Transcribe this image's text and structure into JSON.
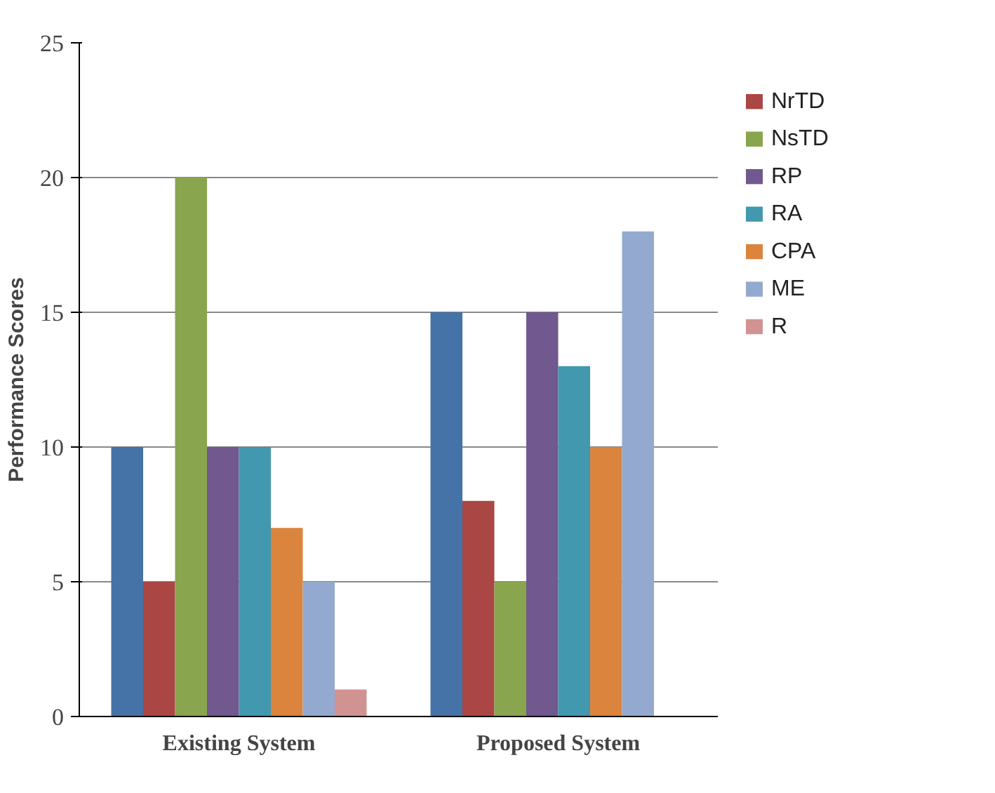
{
  "chart_data": {
    "type": "bar",
    "ylabel": "Performance Scores",
    "categories": [
      "Existing System",
      "Proposed System"
    ],
    "series": [
      {
        "color": "#4572a7",
        "values": [
          10,
          15
        ]
      },
      {
        "name": "NrTD",
        "color": "#aa4643",
        "values": [
          5,
          8
        ]
      },
      {
        "name": "NsTD",
        "color": "#89a54e",
        "values": [
          20,
          5
        ]
      },
      {
        "name": "RP",
        "color": "#71588f",
        "values": [
          10,
          15
        ]
      },
      {
        "name": "RA",
        "color": "#4198af",
        "values": [
          10,
          13
        ]
      },
      {
        "name": "CPA",
        "color": "#db843d",
        "values": [
          7,
          10
        ]
      },
      {
        "name": "ME",
        "color": "#93a9cf",
        "values": [
          5,
          18
        ]
      },
      {
        "name": "R",
        "color": "#d19392",
        "values": [
          1,
          0
        ]
      }
    ],
    "ylim": [
      0,
      25
    ],
    "yticks": [
      0,
      5,
      10,
      15,
      20,
      25
    ],
    "grid": "y",
    "legend": "right"
  }
}
